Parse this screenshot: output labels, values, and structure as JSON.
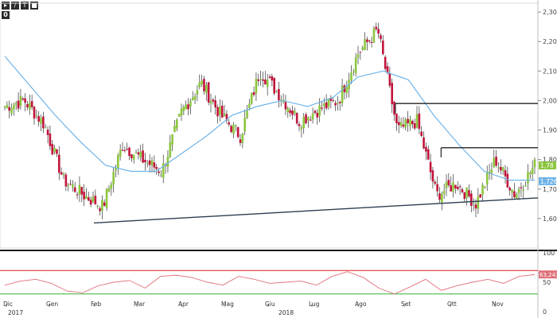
{
  "toolbar": {
    "icons": [
      "pointer-icon",
      "pen-icon",
      "text-icon",
      "eraser-icon"
    ],
    "glyphs": [
      "▸",
      "/",
      "T",
      "■"
    ],
    "counter": "0"
  },
  "colors": {
    "up": "#8cc63f",
    "down": "#c1143c",
    "ma": "#6fb3e8",
    "trendline": "#2c3e50",
    "resistance": "#222222",
    "rsi": "#e0707a",
    "rsi_upper": "#e31c23",
    "rsi_lower": "#34b233",
    "last_price_tag": "#8cc63f",
    "ma_tag": "#6fb3e8",
    "rsi_tag": "#e0707a"
  },
  "chart_data": [
    {
      "type": "candlestick",
      "ylim": [
        1.5,
        2.33
      ],
      "y_ticks": [
        "2,30",
        "2,20",
        "2,10",
        "2,00",
        "1,90",
        "1,80",
        "1,70",
        "1,60"
      ],
      "y_tick_values": [
        2.3,
        2.2,
        2.1,
        2.0,
        1.9,
        1.8,
        1.7,
        1.6
      ],
      "x_month_labels": [
        "Dic",
        "Gen",
        "Feb",
        "Mar",
        "Apr",
        "Mag",
        "Giu",
        "Lug",
        "Ago",
        "Set",
        "Ott",
        "Nov"
      ],
      "year_labels": [
        "2017",
        "2018"
      ],
      "last_price": 1.78,
      "last_price_label": "1,78",
      "ma_last": 1.7265,
      "ma_last_label": "1,7265",
      "ohlc_anchors_close": [
        1.98,
        2.0,
        1.92,
        1.73,
        1.68,
        1.64,
        1.85,
        1.8,
        1.76,
        1.96,
        2.06,
        1.95,
        1.88,
        2.1,
        2.02,
        1.93,
        1.97,
        2.0,
        2.16,
        2.24,
        1.9,
        1.93,
        1.68,
        1.72,
        1.65,
        1.8,
        1.68,
        1.78
      ],
      "moving_average": [
        2.15,
        2.05,
        1.95,
        1.86,
        1.78,
        1.76,
        1.76,
        1.82,
        1.88,
        1.95,
        1.98,
        2.0,
        1.98,
        2.01,
        2.08,
        2.1,
        2.07,
        1.95,
        1.85,
        1.76,
        1.73,
        1.73
      ],
      "trendline": [
        [
          1.585,
          0
        ],
        [
          1.67,
          1
        ]
      ],
      "resistance_lines": [
        {
          "level": 1.99,
          "from": 0.735,
          "to": 1.0
        },
        {
          "level": 1.84,
          "from": 0.82,
          "to": 1.0
        }
      ]
    },
    {
      "type": "line",
      "name": "RSI",
      "ylim": [
        0,
        100
      ],
      "y_ticks": [
        "100",
        "50",
        "0"
      ],
      "y_tick_values": [
        100,
        50,
        0
      ],
      "upper_band": 70,
      "lower_band": 30,
      "last_value": 63.2436,
      "last_value_label": "63,2436",
      "values": [
        45,
        52,
        55,
        48,
        35,
        32,
        44,
        50,
        53,
        40,
        60,
        62,
        58,
        50,
        45,
        60,
        55,
        48,
        50,
        52,
        45,
        60,
        68,
        58,
        40,
        30,
        42,
        55,
        36,
        44,
        50,
        55,
        48,
        60,
        63
      ]
    }
  ]
}
